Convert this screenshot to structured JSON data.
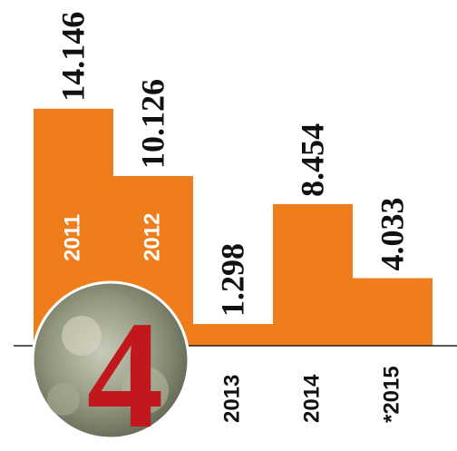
{
  "chart_data": {
    "type": "bar",
    "categories": [
      "2011",
      "2012",
      "2013",
      "2014",
      "*2015"
    ],
    "values": [
      14.146,
      10.126,
      1.298,
      8.454,
      4.033
    ],
    "color": "#f07d1c",
    "ylim": [
      0,
      15
    ]
  }
}
